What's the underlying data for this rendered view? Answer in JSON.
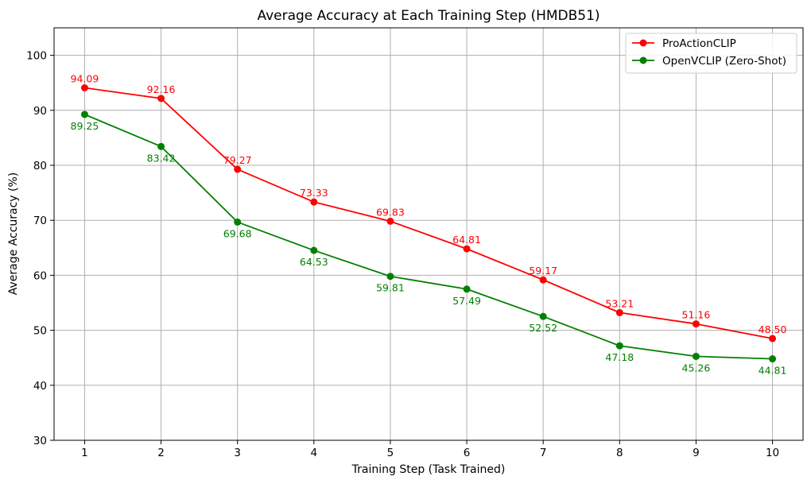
{
  "chart_data": {
    "type": "line",
    "title": "Average Accuracy at Each Training Step (HMDB51)",
    "xlabel": "Training Step (Task Trained)",
    "ylabel": "Average Accuracy (%)",
    "x": [
      1,
      2,
      3,
      4,
      5,
      6,
      7,
      8,
      9,
      10
    ],
    "xlim": [
      0.6,
      10.4
    ],
    "ylim": [
      30,
      105
    ],
    "yticks": [
      30,
      40,
      50,
      60,
      70,
      80,
      90,
      100
    ],
    "grid": true,
    "legend_position": "top-right",
    "series": [
      {
        "name": "ProActionCLIP",
        "color": "#ff0000",
        "marker": "circle",
        "label_position": "above",
        "values": [
          94.09,
          92.16,
          79.27,
          73.33,
          69.83,
          64.81,
          59.17,
          53.21,
          51.16,
          48.5
        ],
        "labels": [
          "94.09",
          "92.16",
          "79.27",
          "73.33",
          "69.83",
          "64.81",
          "59.17",
          "53.21",
          "51.16",
          "48.50"
        ]
      },
      {
        "name": "OpenVCLIP (Zero-Shot)",
        "color": "#008000",
        "marker": "circle",
        "label_position": "below",
        "values": [
          89.25,
          83.42,
          69.68,
          64.53,
          59.81,
          57.49,
          52.52,
          47.18,
          45.26,
          44.81
        ],
        "labels": [
          "89.25",
          "83.42",
          "69.68",
          "64.53",
          "59.81",
          "57.49",
          "52.52",
          "47.18",
          "45.26",
          "44.81"
        ]
      }
    ]
  }
}
